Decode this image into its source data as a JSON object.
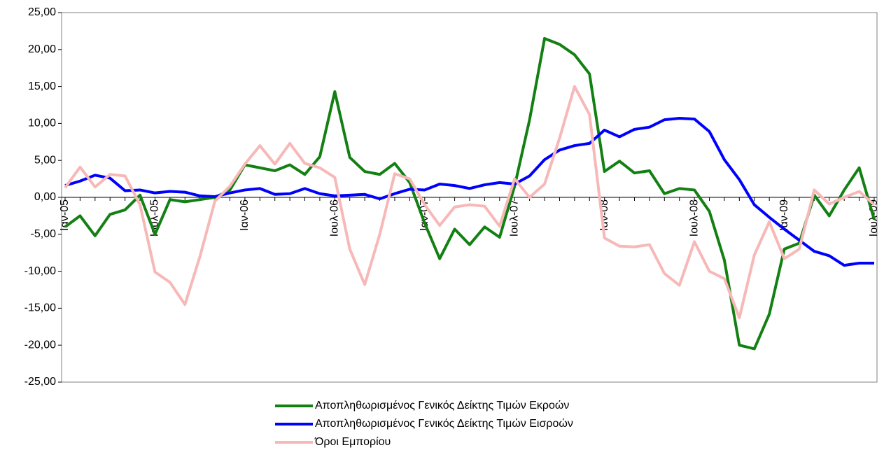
{
  "chart_data": {
    "type": "line",
    "categories": [
      "Ιαν-05",
      null,
      null,
      null,
      null,
      null,
      "Ιουλ-05",
      null,
      null,
      null,
      null,
      null,
      "Ιαν-06",
      null,
      null,
      null,
      null,
      null,
      "Ιουλ-06",
      null,
      null,
      null,
      null,
      null,
      "Ιαν-07",
      null,
      null,
      null,
      null,
      null,
      "Ιουλ-07",
      null,
      null,
      null,
      null,
      null,
      "Ιαν-08",
      null,
      null,
      null,
      null,
      null,
      "Ιουλ-08",
      null,
      null,
      null,
      null,
      null,
      "Ιαν-09",
      null,
      null,
      null,
      null,
      null,
      "Ιουλ-09"
    ],
    "series": [
      {
        "name": "Αποπληθωρισμένος Γενικός Δείκτης Τιμών Εκροών",
        "color": "#138013",
        "values": [
          -4.0,
          -2.5,
          -5.2,
          -2.3,
          -1.7,
          0.3,
          -5.0,
          -0.3,
          -0.6,
          -0.3,
          0.0,
          1.0,
          4.4,
          4.0,
          3.6,
          4.4,
          3.1,
          5.5,
          14.3,
          5.4,
          3.5,
          3.1,
          4.6,
          2.0,
          -3.5,
          -8.3,
          -4.3,
          -6.4,
          -4.0,
          -5.4,
          1.5,
          10.5,
          21.5,
          20.7,
          19.3,
          16.7,
          3.5,
          4.9,
          3.3,
          3.6,
          0.5,
          1.2,
          1.0,
          -1.9,
          -8.5,
          -20.0,
          -20.5,
          -15.8,
          -7.0,
          -6.2,
          0.3,
          -2.5,
          1.0,
          4.0,
          -3.0
        ]
      },
      {
        "name": "Αποπληθωρισμένος Γενικός Δείκτης Τιμών Εισροών",
        "color": "#0000ff",
        "values": [
          1.6,
          2.2,
          3.0,
          2.6,
          0.9,
          1.0,
          0.6,
          0.8,
          0.7,
          0.2,
          0.1,
          0.6,
          1.0,
          1.2,
          0.4,
          0.5,
          1.2,
          0.5,
          0.2,
          0.3,
          0.4,
          -0.2,
          0.5,
          1.1,
          1.0,
          1.8,
          1.6,
          1.2,
          1.7,
          2.0,
          1.8,
          2.9,
          5.1,
          6.4,
          7.0,
          7.3,
          9.1,
          8.2,
          9.2,
          9.5,
          10.5,
          10.7,
          10.6,
          8.9,
          5.1,
          2.4,
          -1.0,
          -2.7,
          -4.3,
          -5.8,
          -7.3,
          -7.9,
          -9.2,
          -8.9,
          -8.9
        ]
      },
      {
        "name": "Όροι Εμπορίου",
        "color": "#f7b8b8",
        "values": [
          1.3,
          4.1,
          1.4,
          3.1,
          2.9,
          -1.0,
          -10.1,
          -11.5,
          -14.5,
          -8.0,
          -0.5,
          1.5,
          4.5,
          7.0,
          4.5,
          7.3,
          4.6,
          4.0,
          2.7,
          -7.0,
          -11.8,
          -5.0,
          3.2,
          2.5,
          -1.0,
          -3.8,
          -1.3,
          -1.0,
          -1.2,
          -3.9,
          2.5,
          0.0,
          1.8,
          8.0,
          15.0,
          11.2,
          -5.5,
          -6.6,
          -6.7,
          -6.4,
          -10.3,
          -11.9,
          -6.0,
          -10.0,
          -11.0,
          -16.3,
          -7.8,
          -3.3,
          -8.3,
          -7.0,
          1.0,
          -0.9,
          0.0,
          0.8,
          -1.0
        ]
      }
    ],
    "ylim": [
      -25,
      25
    ],
    "yticks": [
      {
        "value": -25,
        "label": "-25,00"
      },
      {
        "value": -20,
        "label": "-20,00"
      },
      {
        "value": -15,
        "label": "-15,00"
      },
      {
        "value": -10,
        "label": "-10,00"
      },
      {
        "value": -5,
        "label": "-5,00"
      },
      {
        "value": 0,
        "label": "0,00"
      },
      {
        "value": 5,
        "label": "5,00"
      },
      {
        "value": 10,
        "label": "10,00"
      },
      {
        "value": 15,
        "label": "15,00"
      },
      {
        "value": 20,
        "label": "20,00"
      },
      {
        "value": 25,
        "label": "25,00"
      }
    ],
    "grid": false
  }
}
